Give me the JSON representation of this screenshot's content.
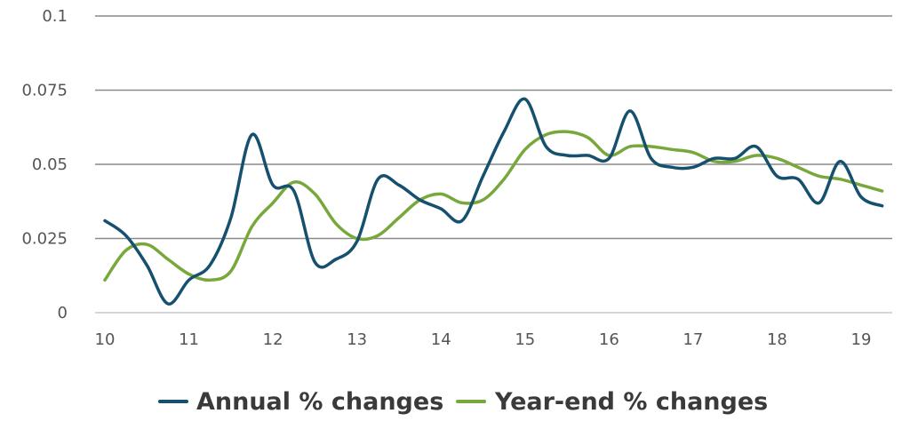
{
  "chart_data": {
    "type": "line",
    "title": "",
    "xlabel": "",
    "ylabel": "",
    "xlim": [
      10,
      19.28
    ],
    "ylim": [
      0,
      0.1
    ],
    "x_ticks": [
      10,
      11,
      12,
      13,
      14,
      15,
      16,
      17,
      18,
      19
    ],
    "x_tick_labels": [
      "10",
      "11",
      "12",
      "13",
      "14",
      "15",
      "16",
      "17",
      "18",
      "19"
    ],
    "y_ticks": [
      0,
      0.025,
      0.05,
      0.075,
      0.1
    ],
    "y_tick_labels": [
      "0",
      "0.025",
      "0.05",
      "0.075",
      "0.1"
    ],
    "grid": true,
    "legend_position": "bottom-center",
    "series": [
      {
        "name": "Annual % changes",
        "color": "#15506e",
        "x": [
          10,
          10.25,
          10.5,
          10.75,
          11,
          11.25,
          11.5,
          11.75,
          12,
          12.25,
          12.5,
          12.75,
          13,
          13.25,
          13.5,
          13.75,
          14,
          14.25,
          14.5,
          14.75,
          15,
          15.25,
          15.5,
          15.75,
          16,
          16.25,
          16.5,
          16.75,
          17,
          17.25,
          17.5,
          17.75,
          18,
          18.25,
          18.5,
          18.75,
          19,
          19.25
        ],
        "y": [
          0.031,
          0.026,
          0.016,
          0.003,
          0.011,
          0.016,
          0.032,
          0.06,
          0.043,
          0.041,
          0.017,
          0.018,
          0.024,
          0.045,
          0.043,
          0.038,
          0.035,
          0.031,
          0.046,
          0.061,
          0.072,
          0.056,
          0.053,
          0.053,
          0.052,
          0.068,
          0.052,
          0.049,
          0.049,
          0.052,
          0.052,
          0.056,
          0.046,
          0.045,
          0.037,
          0.051,
          0.039,
          0.036
        ]
      },
      {
        "name": "Year-end % changes",
        "color": "#78a83c",
        "x": [
          10,
          10.25,
          10.5,
          10.75,
          11,
          11.25,
          11.5,
          11.75,
          12,
          12.25,
          12.5,
          12.75,
          13,
          13.25,
          13.5,
          13.75,
          14,
          14.25,
          14.5,
          14.75,
          15,
          15.25,
          15.5,
          15.75,
          16,
          16.25,
          16.5,
          16.75,
          17,
          17.25,
          17.5,
          17.75,
          18,
          18.25,
          18.5,
          18.75,
          19,
          19.25
        ],
        "y": [
          0.011,
          0.021,
          0.023,
          0.018,
          0.013,
          0.011,
          0.014,
          0.029,
          0.037,
          0.044,
          0.04,
          0.03,
          0.025,
          0.026,
          0.032,
          0.038,
          0.04,
          0.037,
          0.038,
          0.045,
          0.055,
          0.06,
          0.061,
          0.059,
          0.053,
          0.056,
          0.056,
          0.055,
          0.054,
          0.051,
          0.051,
          0.053,
          0.052,
          0.049,
          0.046,
          0.045,
          0.043,
          0.041
        ]
      }
    ]
  }
}
